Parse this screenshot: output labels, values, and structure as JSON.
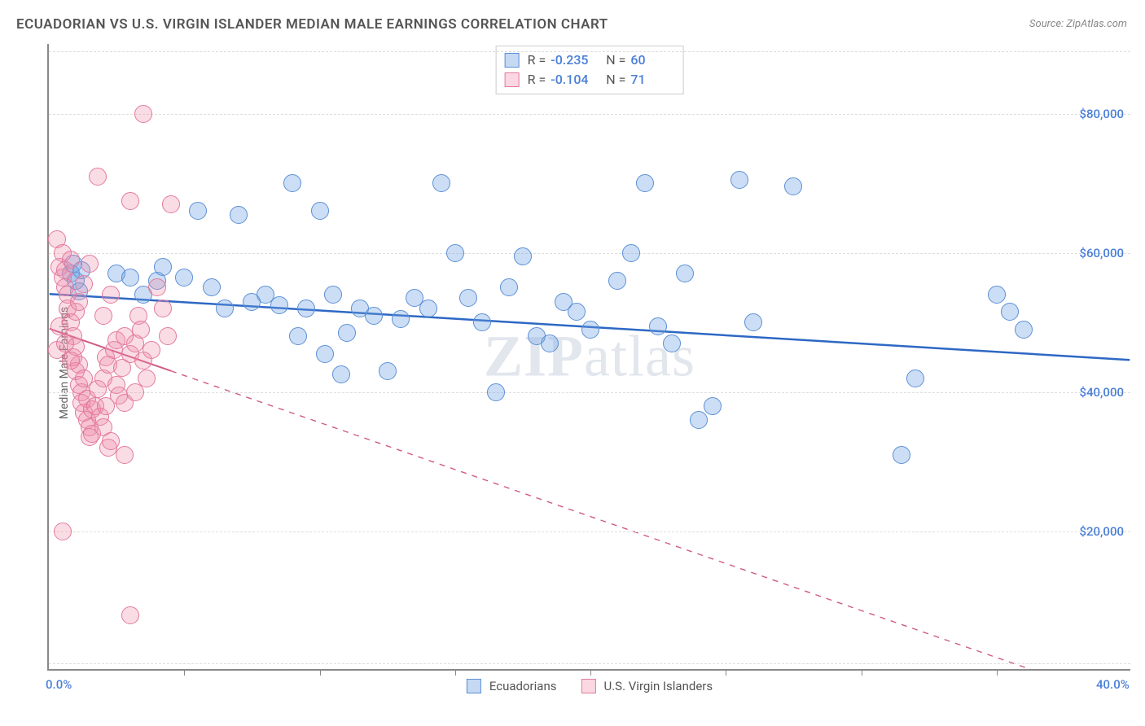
{
  "title": "ECUADORIAN VS U.S. VIRGIN ISLANDER MEDIAN MALE EARNINGS CORRELATION CHART",
  "source": "Source: ZipAtlas.com",
  "ylabel": "Median Male Earnings",
  "watermark_prefix": "ZIP",
  "watermark_suffix": "atlas",
  "chart": {
    "type": "scatter",
    "xlim": [
      0,
      40
    ],
    "ylim": [
      0,
      90000
    ],
    "xticks": [
      0,
      5,
      10,
      15,
      20,
      25,
      30,
      35,
      40
    ],
    "xticks_visible": [
      5,
      10,
      15,
      20,
      25,
      30,
      35
    ],
    "xtick_labels": {
      "0": "0.0%",
      "40": "40.0%"
    },
    "yticks": [
      20000,
      40000,
      60000,
      80000
    ],
    "ytick_labels": {
      "20000": "$20,000",
      "40000": "$40,000",
      "60000": "$60,000",
      "80000": "$80,000"
    },
    "grid_dashes": [
      1000,
      20000,
      40000,
      60000,
      80000,
      89000
    ],
    "background_color": "#ffffff",
    "grid_color": "#dddddd",
    "axis_color": "#888888",
    "label_color": "#4a7fd8",
    "point_radius": 11,
    "series": [
      {
        "name": "Ecuadorians",
        "color_fill": "rgba(110,160,225,0.35)",
        "color_stroke": "#5b8fd6",
        "R": "-0.235",
        "N": "60",
        "trend": {
          "x1": 0,
          "y1": 54000,
          "x2": 40,
          "y2": 44500,
          "solid_until_x": 40,
          "stroke": "#2d68c4",
          "width": 2.5
        },
        "points": [
          [
            0.8,
            57000
          ],
          [
            0.9,
            58500
          ],
          [
            1.0,
            56000
          ],
          [
            1.1,
            54500
          ],
          [
            1.2,
            57500
          ],
          [
            2.5,
            57000
          ],
          [
            3.0,
            56500
          ],
          [
            3.5,
            54000
          ],
          [
            4.0,
            56000
          ],
          [
            4.2,
            58000
          ],
          [
            5.0,
            56500
          ],
          [
            5.5,
            66000
          ],
          [
            6.0,
            55000
          ],
          [
            6.5,
            52000
          ],
          [
            7.0,
            65500
          ],
          [
            7.5,
            53000
          ],
          [
            8.0,
            54000
          ],
          [
            8.5,
            52500
          ],
          [
            9.0,
            70000
          ],
          [
            9.2,
            48000
          ],
          [
            9.5,
            52000
          ],
          [
            10.0,
            66000
          ],
          [
            10.2,
            45500
          ],
          [
            10.5,
            54000
          ],
          [
            10.8,
            42500
          ],
          [
            11.0,
            48500
          ],
          [
            11.5,
            52000
          ],
          [
            12.0,
            51000
          ],
          [
            12.5,
            43000
          ],
          [
            13.0,
            50500
          ],
          [
            13.5,
            53500
          ],
          [
            14.0,
            52000
          ],
          [
            14.5,
            70000
          ],
          [
            15.0,
            60000
          ],
          [
            15.5,
            53500
          ],
          [
            16.0,
            50000
          ],
          [
            16.5,
            40000
          ],
          [
            17.0,
            55000
          ],
          [
            17.5,
            59500
          ],
          [
            18.0,
            48000
          ],
          [
            18.5,
            47000
          ],
          [
            19.0,
            53000
          ],
          [
            19.5,
            51500
          ],
          [
            20.0,
            49000
          ],
          [
            21.0,
            56000
          ],
          [
            21.5,
            60000
          ],
          [
            22.0,
            70000
          ],
          [
            22.5,
            49500
          ],
          [
            23.0,
            47000
          ],
          [
            23.5,
            57000
          ],
          [
            24.0,
            36000
          ],
          [
            24.5,
            38000
          ],
          [
            25.5,
            70500
          ],
          [
            26.0,
            50000
          ],
          [
            27.5,
            69500
          ],
          [
            31.5,
            31000
          ],
          [
            32.0,
            42000
          ],
          [
            35.0,
            54000
          ],
          [
            35.5,
            51500
          ],
          [
            36.0,
            49000
          ]
        ]
      },
      {
        "name": "U.S. Virgin Islanders",
        "color_fill": "rgba(240,140,170,0.30)",
        "color_stroke": "#e27a9e",
        "R": "-0.104",
        "N": "71",
        "trend": {
          "x1": 0,
          "y1": 49000,
          "x2": 40,
          "y2": -5000,
          "solid_until_x": 4.5,
          "stroke": "#d15a86",
          "width": 2
        },
        "points": [
          [
            0.3,
            62000
          ],
          [
            0.4,
            58000
          ],
          [
            0.5,
            56500
          ],
          [
            0.5,
            60000
          ],
          [
            0.6,
            55000
          ],
          [
            0.6,
            57500
          ],
          [
            0.7,
            54000
          ],
          [
            0.7,
            52000
          ],
          [
            0.8,
            59000
          ],
          [
            0.8,
            50000
          ],
          [
            0.9,
            48000
          ],
          [
            0.9,
            45000
          ],
          [
            1.0,
            46500
          ],
          [
            1.0,
            43000
          ],
          [
            1.1,
            41000
          ],
          [
            1.1,
            44000
          ],
          [
            1.2,
            40000
          ],
          [
            1.2,
            38500
          ],
          [
            1.3,
            42000
          ],
          [
            1.3,
            37000
          ],
          [
            1.4,
            36000
          ],
          [
            1.4,
            39000
          ],
          [
            1.5,
            35000
          ],
          [
            1.5,
            33500
          ],
          [
            1.6,
            34000
          ],
          [
            1.6,
            37500
          ],
          [
            1.7,
            38000
          ],
          [
            1.8,
            40500
          ],
          [
            1.8,
            71000
          ],
          [
            1.9,
            36500
          ],
          [
            2.0,
            35000
          ],
          [
            2.0,
            42000
          ],
          [
            2.1,
            38000
          ],
          [
            2.1,
            45000
          ],
          [
            2.2,
            44000
          ],
          [
            2.2,
            32000
          ],
          [
            2.3,
            33000
          ],
          [
            2.4,
            46000
          ],
          [
            2.5,
            47500
          ],
          [
            2.5,
            41000
          ],
          [
            2.6,
            39500
          ],
          [
            2.7,
            43500
          ],
          [
            2.8,
            48000
          ],
          [
            2.8,
            38500
          ],
          [
            3.0,
            45500
          ],
          [
            3.0,
            67500
          ],
          [
            3.2,
            47000
          ],
          [
            3.2,
            40000
          ],
          [
            3.3,
            51000
          ],
          [
            3.4,
            49000
          ],
          [
            3.5,
            80000
          ],
          [
            3.5,
            44500
          ],
          [
            3.6,
            42000
          ],
          [
            3.8,
            46000
          ],
          [
            4.0,
            55000
          ],
          [
            4.2,
            52000
          ],
          [
            4.4,
            48000
          ],
          [
            4.5,
            67000
          ],
          [
            0.5,
            20000
          ],
          [
            2.8,
            31000
          ],
          [
            1.0,
            51500
          ],
          [
            1.1,
            53000
          ],
          [
            1.3,
            55500
          ],
          [
            0.4,
            49500
          ],
          [
            0.6,
            47000
          ],
          [
            0.8,
            44500
          ],
          [
            1.5,
            58500
          ],
          [
            3.0,
            8000
          ],
          [
            2.0,
            51000
          ],
          [
            2.3,
            54000
          ],
          [
            0.3,
            46000
          ]
        ]
      }
    ]
  },
  "legend_bottom": [
    {
      "label": "Ecuadorians",
      "swatch": "blue"
    },
    {
      "label": "U.S. Virgin Islanders",
      "swatch": "pink"
    }
  ]
}
